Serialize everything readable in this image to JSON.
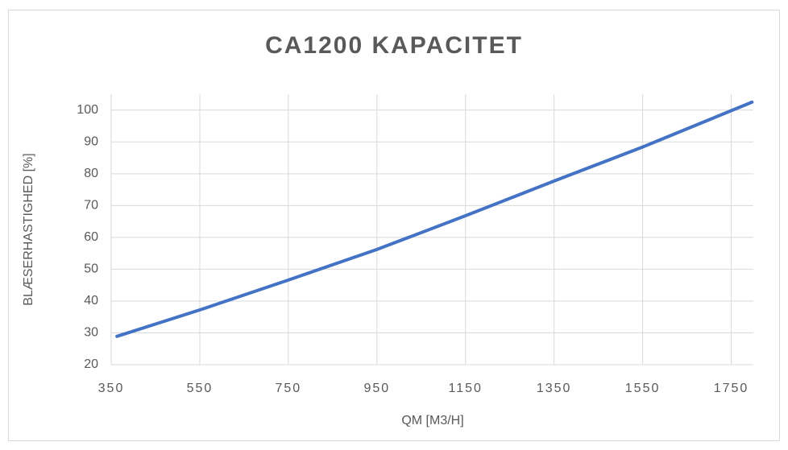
{
  "chart_data": {
    "type": "line",
    "title": "CA1200 KAPACITET",
    "xlabel": "QM [M3/H]",
    "ylabel": "BLÆSERHASTIGHED [%]",
    "x": [
      363,
      550,
      750,
      950,
      1150,
      1350,
      1550,
      1797
    ],
    "series": [
      {
        "name": "CA1200",
        "color": "#4472c4",
        "values": [
          28.9,
          37.2,
          46.6,
          56.2,
          66.8,
          77.7,
          88.4,
          102.5
        ]
      }
    ],
    "xlim": [
      350,
      1800
    ],
    "xticks": [
      350,
      550,
      750,
      950,
      1150,
      1350,
      1550,
      1750
    ],
    "ylim": [
      20,
      105
    ],
    "yticks": [
      20,
      30,
      40,
      50,
      60,
      70,
      80,
      90,
      100
    ],
    "grid": true
  }
}
